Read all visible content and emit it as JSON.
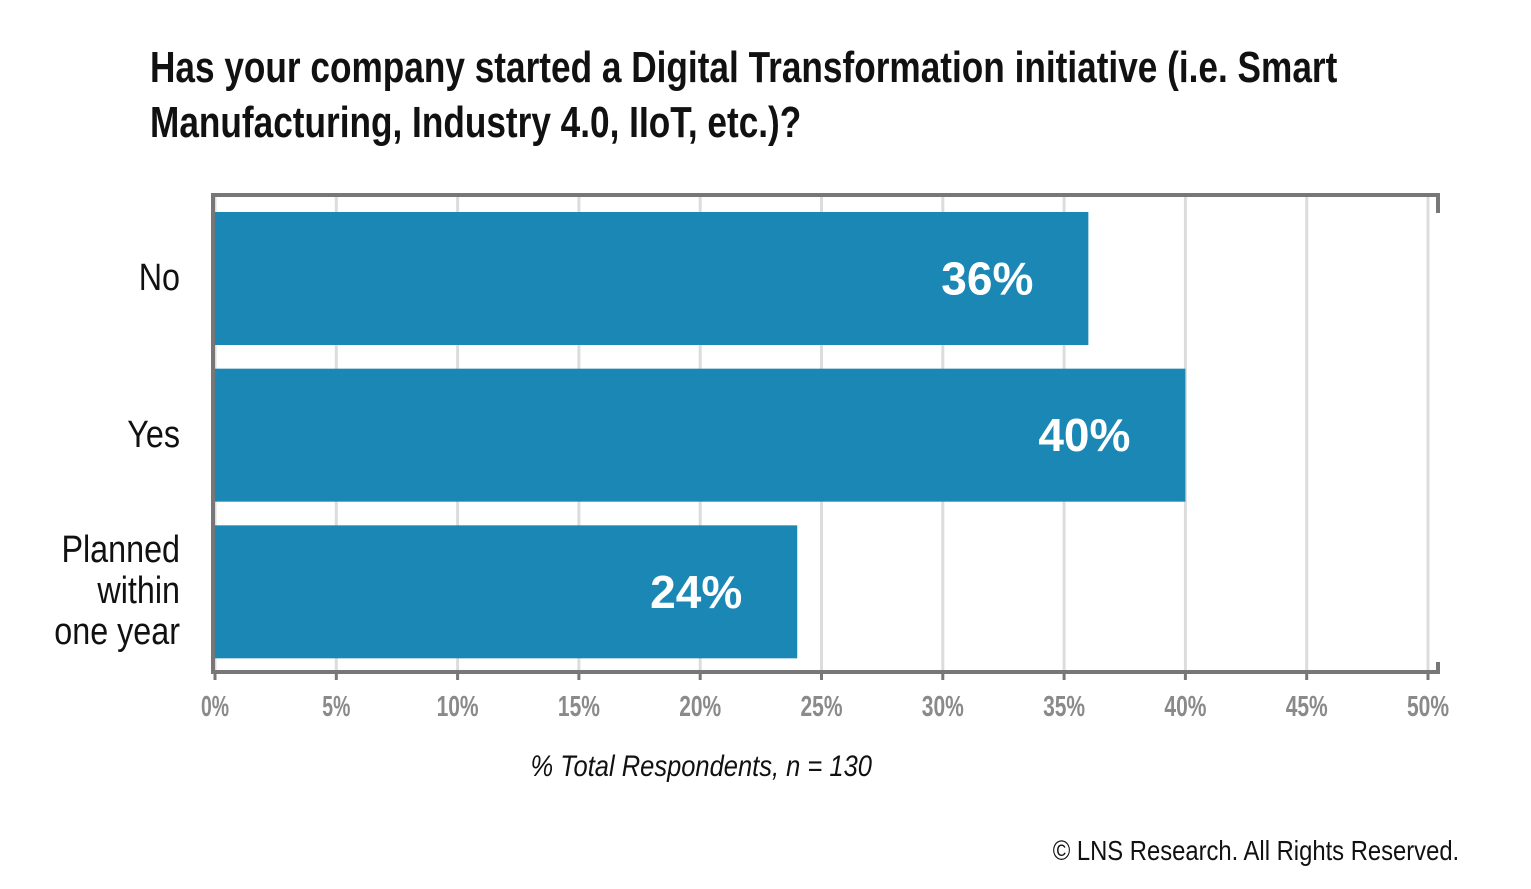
{
  "chart_data": {
    "type": "bar",
    "orientation": "horizontal",
    "title": "Has your company started a Digital Transformation initiative (i.e. Smart Manufacturing, Industry 4.0, IIoT, etc.)?",
    "categories": [
      "No",
      "Yes",
      "Planned within one year"
    ],
    "values": [
      36,
      40,
      24
    ],
    "value_labels": [
      "36%",
      "40%",
      "24%"
    ],
    "color": "#1a87b5",
    "xlim": [
      0,
      50
    ],
    "xticks": [
      {
        "value": 0,
        "label": "0%"
      },
      {
        "value": 5,
        "label": "5%"
      },
      {
        "value": 10,
        "label": "10%"
      },
      {
        "value": 15,
        "label": "15%"
      },
      {
        "value": 20,
        "label": "20%"
      },
      {
        "value": 25,
        "label": "25%"
      },
      {
        "value": 30,
        "label": "30%"
      },
      {
        "value": 35,
        "label": "35%"
      },
      {
        "value": 40,
        "label": "40%"
      },
      {
        "value": 45,
        "label": "45%"
      },
      {
        "value": 50,
        "label": "50%"
      }
    ],
    "xlabel": "% Total Respondents, n = 130",
    "grid": true,
    "footer": "© LNS Research. All Rights Reserved."
  }
}
